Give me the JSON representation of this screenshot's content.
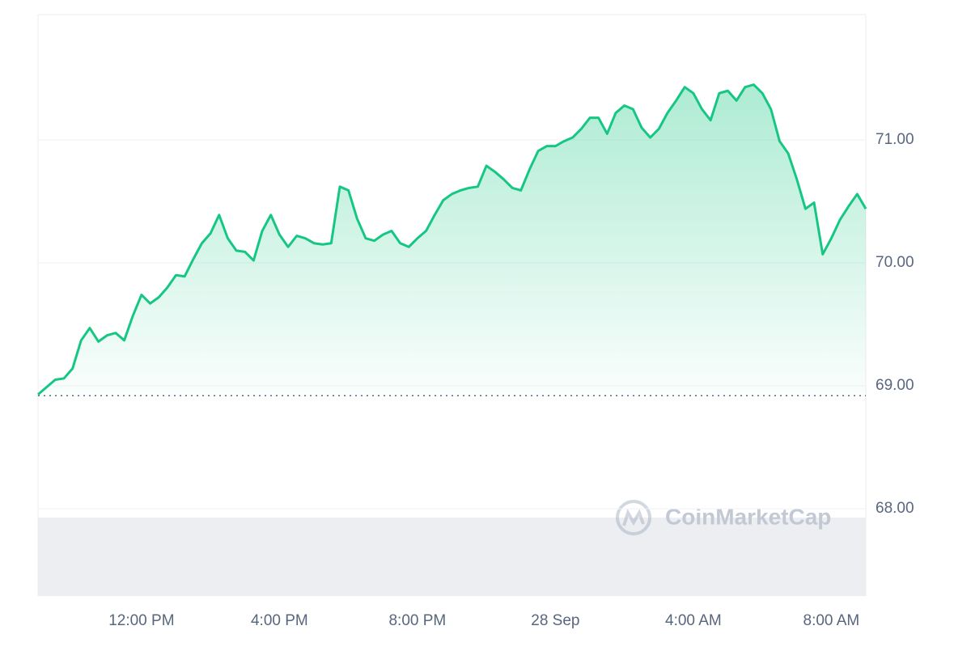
{
  "chart_data": {
    "type": "area",
    "watermark": "CoinMarketCap",
    "categories": [
      null,
      null,
      null,
      null,
      null,
      null,
      null,
      null,
      null,
      null,
      null,
      null,
      "12:00 PM",
      null,
      null,
      null,
      null,
      null,
      null,
      null,
      null,
      null,
      null,
      null,
      null,
      null,
      null,
      null,
      "4:00 PM",
      null,
      null,
      null,
      null,
      null,
      null,
      null,
      null,
      null,
      null,
      null,
      null,
      null,
      null,
      null,
      "8:00 PM",
      null,
      null,
      null,
      null,
      null,
      null,
      null,
      null,
      null,
      null,
      null,
      null,
      null,
      null,
      null,
      "28 Sep",
      null,
      null,
      null,
      null,
      null,
      null,
      null,
      null,
      null,
      null,
      null,
      null,
      null,
      null,
      null,
      "4:00 AM",
      null,
      null,
      null,
      null,
      null,
      null,
      null,
      null,
      null,
      null,
      null,
      null,
      null,
      null,
      null,
      "8:00 AM",
      null,
      null,
      null,
      null
    ],
    "values": [
      68.93,
      68.99,
      69.05,
      69.06,
      69.14,
      69.37,
      69.47,
      69.36,
      69.41,
      69.43,
      69.37,
      69.57,
      69.74,
      69.67,
      69.72,
      69.8,
      69.9,
      69.89,
      70.03,
      70.16,
      70.24,
      70.39,
      70.2,
      70.1,
      70.09,
      70.02,
      70.26,
      70.39,
      70.23,
      70.13,
      70.22,
      70.2,
      70.16,
      70.15,
      70.16,
      70.62,
      70.59,
      70.36,
      70.2,
      70.18,
      70.23,
      70.26,
      70.16,
      70.13,
      70.2,
      70.26,
      70.39,
      70.51,
      70.56,
      70.59,
      70.61,
      70.62,
      70.79,
      70.74,
      70.68,
      70.61,
      70.59,
      70.76,
      70.91,
      70.95,
      70.95,
      70.99,
      71.02,
      71.09,
      71.18,
      71.18,
      71.05,
      71.22,
      71.28,
      71.25,
      71.1,
      71.02,
      71.09,
      71.22,
      71.32,
      71.43,
      71.38,
      71.25,
      71.16,
      71.38,
      71.4,
      71.32,
      71.43,
      71.45,
      71.38,
      71.25,
      70.99,
      70.89,
      70.68,
      70.44,
      70.49,
      70.07,
      70.2,
      70.35,
      70.46,
      70.56,
      70.44
    ],
    "color": "#16c784",
    "baseline": 68.92,
    "ylim": [
      67.29,
      72.02
    ],
    "yticks": [
      {
        "value": 68,
        "label": "68.00"
      },
      {
        "value": 69,
        "label": "69.00"
      },
      {
        "value": 70,
        "label": "70.00"
      },
      {
        "value": 71,
        "label": "71.00"
      }
    ],
    "grid": true
  }
}
